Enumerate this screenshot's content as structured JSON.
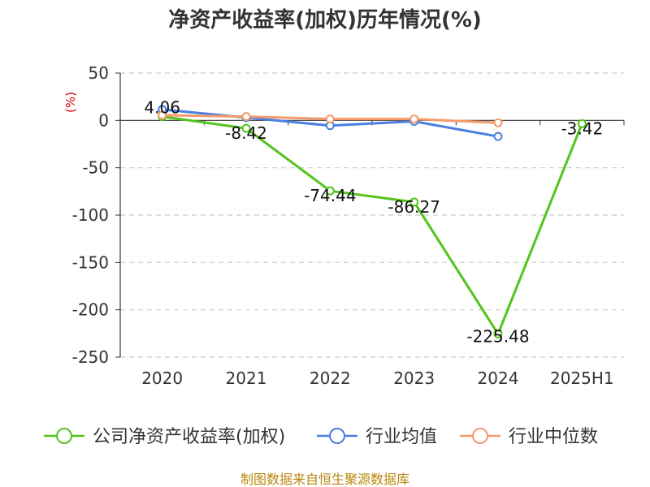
{
  "chart_data": {
    "type": "line",
    "title": "净资产收益率(加权)历年情况(%)",
    "unit_label": "(%)",
    "categories": [
      "2020",
      "2021",
      "2022",
      "2023",
      "2024",
      "2025H1"
    ],
    "ylim": [
      -250,
      50
    ],
    "yticks": [
      50,
      0,
      -50,
      -100,
      -150,
      -200,
      -250
    ],
    "grid": "horizontal-dashed",
    "legend_position": "bottom",
    "series": [
      {
        "name": "公司净资产收益率(加权)",
        "color": "#52c41a",
        "marker": "open-circle",
        "values": [
          4.06,
          -8.42,
          -74.44,
          -86.27,
          -225.48,
          -3.42
        ],
        "data_labels": [
          "4.06",
          "-8.42",
          "-74.44",
          "-86.27",
          "-225.48",
          "-3.42"
        ]
      },
      {
        "name": "行业均值",
        "color": "#4a7fe0",
        "marker": "open-circle",
        "values": [
          11.5,
          3.0,
          -5.5,
          -1.0,
          -17.0,
          null
        ]
      },
      {
        "name": "行业中位数",
        "color": "#f59a6a",
        "marker": "open-circle",
        "values": [
          5.5,
          4.0,
          1.5,
          1.5,
          -2.5,
          null
        ]
      }
    ]
  },
  "source": "制图数据来自恒生聚源数据库"
}
